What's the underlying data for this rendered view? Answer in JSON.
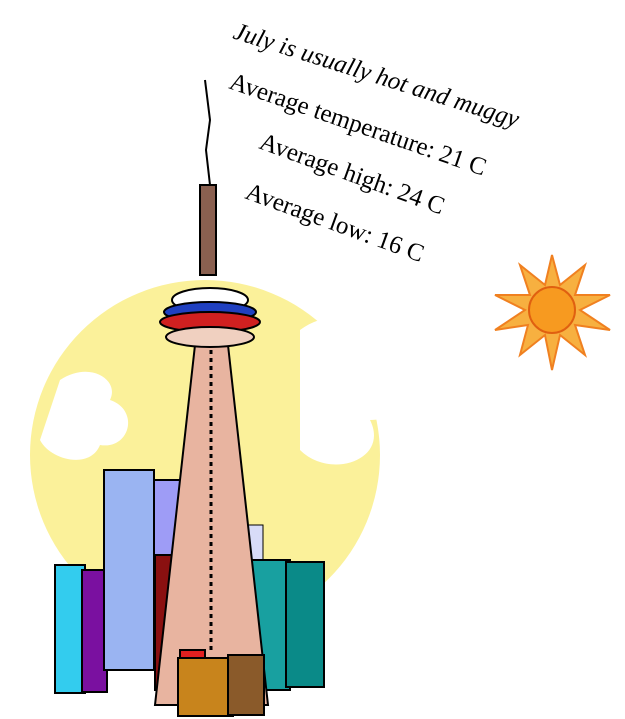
{
  "caption": {
    "headline": "July is usually hot and muggy",
    "lines": [
      "Average temperature:  21 C",
      "Average high:  24 C",
      "Average low:  16 C"
    ]
  }
}
